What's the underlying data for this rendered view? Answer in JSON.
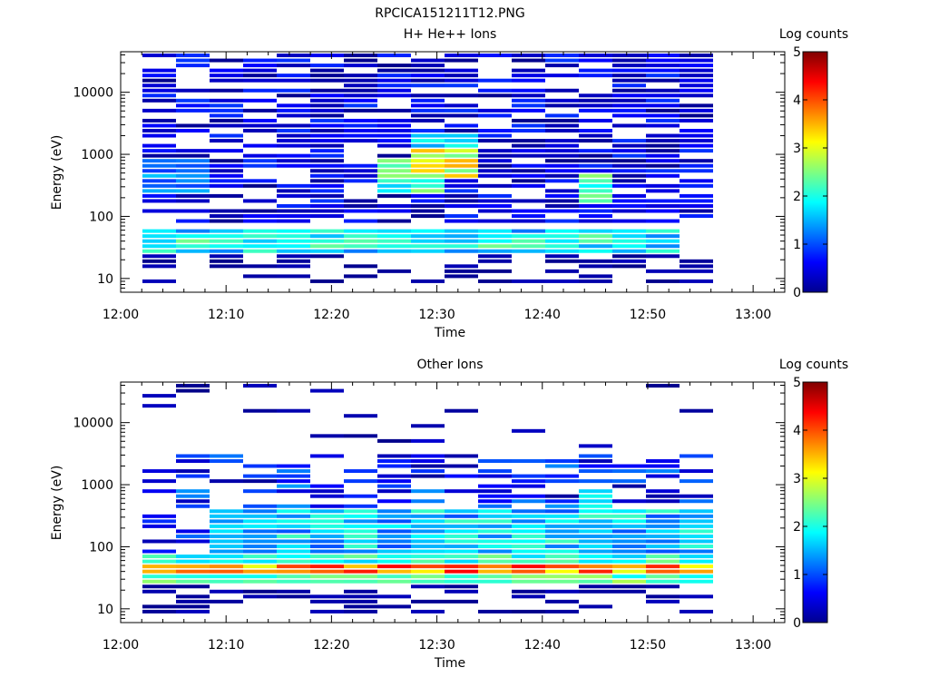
{
  "figure_title": "RPCICA151211T12.PNG",
  "chart_data": [
    {
      "type": "heatmap",
      "title": "H+ He++ Ions",
      "xlabel": "Time",
      "ylabel": "Energy (eV)",
      "x_ticks": [
        "12:00",
        "12:10",
        "12:20",
        "12:30",
        "12:40",
        "12:50",
        "13:00"
      ],
      "y_ticks": [
        "10",
        "100",
        "1000",
        "10000"
      ],
      "y_scale": "log",
      "ylim": [
        6,
        45000
      ],
      "xlim": [
        "12:00",
        "13:03"
      ],
      "colorbar": {
        "label": "Log counts",
        "ticks": [
          "0",
          "1",
          "2",
          "3",
          "4",
          "5"
        ],
        "range": [
          0,
          5
        ],
        "colormap": "jet"
      },
      "seed": 7,
      "bands": [
        {
          "e": [
            25,
            60
          ],
          "t": [
            0,
            15
          ],
          "v": [
            1.2,
            2.2
          ]
        },
        {
          "e": [
            30,
            48
          ],
          "t": [
            1,
            14
          ],
          "v": [
            1.4,
            2.5
          ]
        },
        {
          "e": [
            250,
            800
          ],
          "t": [
            7,
            8
          ],
          "v": [
            1.6,
            2.6
          ]
        },
        {
          "e": [
            400,
            1200
          ],
          "t": [
            8,
            9
          ],
          "v": [
            2.4,
            3.8
          ]
        },
        {
          "e": [
            1200,
            2200
          ],
          "t": [
            8,
            9
          ],
          "v": [
            1.2,
            2.0
          ]
        },
        {
          "e": [
            150,
            500
          ],
          "t": [
            13,
            13
          ],
          "v": [
            1.8,
            2.6
          ]
        },
        {
          "e": [
            250,
            800
          ],
          "t": [
            0,
            1
          ],
          "v": [
            0.8,
            1.6
          ]
        }
      ],
      "fill": {
        "emin": 70,
        "emax": 42000,
        "p": 0.72,
        "v": [
          0.05,
          0.9
        ]
      },
      "low": {
        "emin": 8,
        "emax": 25,
        "p": 0.45,
        "v": [
          0.05,
          0.3
        ]
      }
    },
    {
      "type": "heatmap",
      "title": "Other Ions",
      "xlabel": "Time",
      "ylabel": "Energy (eV)",
      "x_ticks": [
        "12:00",
        "12:10",
        "12:20",
        "12:30",
        "12:40",
        "12:50",
        "13:00"
      ],
      "y_ticks": [
        "10",
        "100",
        "1000",
        "10000"
      ],
      "y_scale": "log",
      "ylim": [
        6,
        45000
      ],
      "xlim": [
        "12:00",
        "13:03"
      ],
      "colorbar": {
        "label": "Log counts",
        "ticks": [
          "0",
          "1",
          "2",
          "3",
          "4",
          "5"
        ],
        "range": [
          0,
          5
        ],
        "colormap": "jet"
      },
      "seed": 11,
      "bands": [
        {
          "e": [
            33,
            52
          ],
          "t": [
            0,
            17
          ],
          "v": [
            3.0,
            4.4
          ]
        },
        {
          "e": [
            26,
            33
          ],
          "t": [
            0,
            17
          ],
          "v": [
            1.8,
            2.8
          ]
        },
        {
          "e": [
            52,
            80
          ],
          "t": [
            0,
            17
          ],
          "v": [
            1.6,
            2.6
          ]
        },
        {
          "e": [
            80,
            400
          ],
          "t": [
            2,
            17
          ],
          "v": [
            1.0,
            2.2
          ]
        },
        {
          "e": [
            300,
            800
          ],
          "t": [
            13,
            13
          ],
          "v": [
            1.6,
            2.3
          ]
        }
      ],
      "fill": {
        "emin": 80,
        "emax": 3000,
        "p": 0.55,
        "v": [
          0.1,
          1.4
        ]
      },
      "high": {
        "emin": 3000,
        "emax": 40000,
        "p": 0.08,
        "v": [
          0.05,
          0.4
        ]
      },
      "low": {
        "emin": 8,
        "emax": 24,
        "p": 0.55,
        "v": [
          0.05,
          0.3
        ]
      }
    }
  ]
}
